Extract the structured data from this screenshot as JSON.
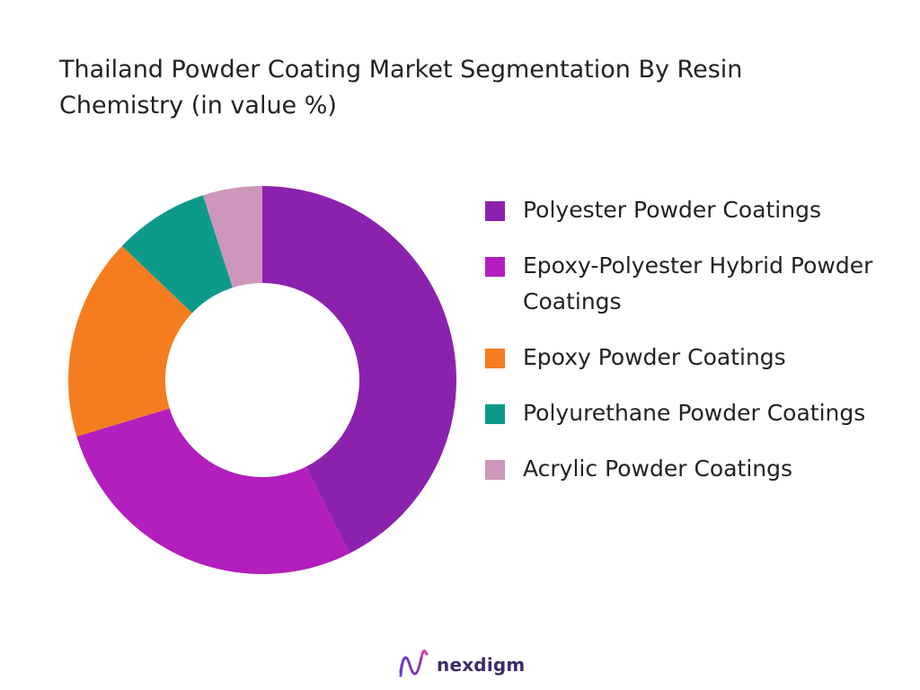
{
  "chart_data": {
    "type": "pie",
    "title": "Thailand Powder Coating Market Segmentation By Resin Chemistry (in value %)",
    "categories": [
      "Polyester Powder Coatings",
      "Epoxy-Polyester Hybrid Powder Coatings",
      "Epoxy Powder Coatings",
      "Polyurethane Powder Coatings",
      "Acrylic Powder Coatings"
    ],
    "values": [
      43,
      28,
      17,
      8,
      5
    ],
    "colors": [
      "#8b22ae",
      "#b21fbc",
      "#f47d20",
      "#0e9a8a",
      "#cc97ba"
    ],
    "legend_placement": "right",
    "donut": true
  },
  "brand": {
    "logo_text": "nexdigm",
    "logo_icon": "nexdigm-logo-icon"
  }
}
